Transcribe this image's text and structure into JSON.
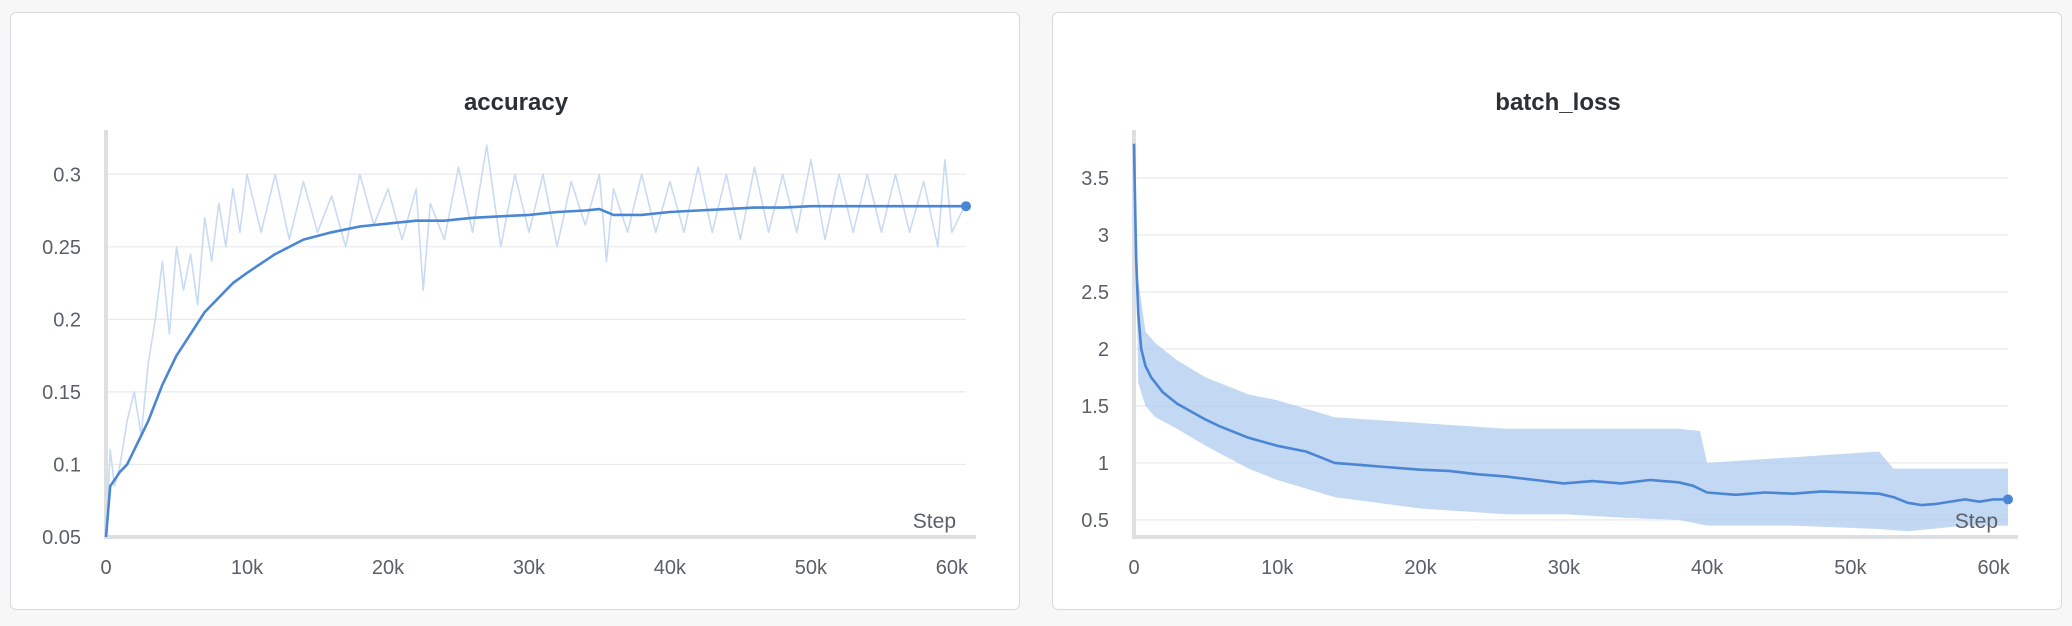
{
  "colors": {
    "line": "#4a86d4",
    "band": "#aecbef",
    "raw": "#c9dbf2"
  },
  "chart_data": [
    {
      "type": "line",
      "title": "accuracy",
      "xlabel": "Step",
      "xlim": [
        0,
        61000
      ],
      "ylim": [
        0.05,
        0.325
      ],
      "xticks": [
        0,
        10000,
        20000,
        30000,
        40000,
        50000,
        60000
      ],
      "xtick_labels": [
        "0",
        "10k",
        "20k",
        "30k",
        "40k",
        "50k",
        "60k"
      ],
      "yticks": [
        0.05,
        0.1,
        0.15,
        0.2,
        0.25,
        0.3
      ],
      "ytick_labels": [
        "0.05",
        "0.1",
        "0.15",
        "0.2",
        "0.25",
        "0.3"
      ],
      "grid": true,
      "series": [
        {
          "style": "smoothed",
          "x": [
            0,
            300,
            1000,
            1500,
            2000,
            3000,
            4000,
            5000,
            6000,
            7000,
            8000,
            9000,
            10000,
            12000,
            14000,
            16000,
            18000,
            20000,
            22000,
            24000,
            26000,
            28000,
            30000,
            32000,
            34000,
            35000,
            36000,
            38000,
            40000,
            42000,
            44000,
            46000,
            48000,
            50000,
            52000,
            54000,
            56000,
            58000,
            61000
          ],
          "y": [
            0.05,
            0.085,
            0.095,
            0.1,
            0.11,
            0.13,
            0.155,
            0.175,
            0.19,
            0.205,
            0.215,
            0.225,
            0.232,
            0.245,
            0.255,
            0.26,
            0.264,
            0.266,
            0.268,
            0.268,
            0.27,
            0.271,
            0.272,
            0.274,
            0.275,
            0.276,
            0.272,
            0.272,
            0.274,
            0.275,
            0.276,
            0.277,
            0.277,
            0.278,
            0.278,
            0.278,
            0.278,
            0.278,
            0.278
          ]
        },
        {
          "style": "raw",
          "x": [
            0,
            300,
            600,
            1000,
            1500,
            2000,
            2500,
            3000,
            3500,
            4000,
            4500,
            5000,
            5500,
            6000,
            6500,
            7000,
            7500,
            8000,
            8500,
            9000,
            9500,
            10000,
            11000,
            12000,
            13000,
            14000,
            15000,
            16000,
            17000,
            18000,
            19000,
            20000,
            21000,
            22000,
            22500,
            23000,
            24000,
            25000,
            26000,
            27000,
            28000,
            29000,
            30000,
            31000,
            32000,
            33000,
            34000,
            35000,
            35500,
            36000,
            37000,
            38000,
            39000,
            40000,
            41000,
            42000,
            43000,
            44000,
            45000,
            46000,
            47000,
            48000,
            49000,
            50000,
            51000,
            52000,
            53000,
            54000,
            55000,
            56000,
            57000,
            58000,
            59000,
            59500,
            60000,
            61000
          ],
          "y": [
            0.05,
            0.11,
            0.085,
            0.1,
            0.13,
            0.15,
            0.12,
            0.17,
            0.2,
            0.24,
            0.19,
            0.25,
            0.22,
            0.245,
            0.21,
            0.27,
            0.24,
            0.28,
            0.25,
            0.29,
            0.26,
            0.3,
            0.26,
            0.3,
            0.255,
            0.295,
            0.26,
            0.285,
            0.25,
            0.3,
            0.265,
            0.29,
            0.255,
            0.29,
            0.22,
            0.28,
            0.255,
            0.305,
            0.26,
            0.32,
            0.25,
            0.3,
            0.26,
            0.3,
            0.25,
            0.295,
            0.265,
            0.3,
            0.24,
            0.29,
            0.26,
            0.3,
            0.26,
            0.295,
            0.26,
            0.305,
            0.26,
            0.3,
            0.255,
            0.305,
            0.26,
            0.3,
            0.26,
            0.31,
            0.255,
            0.3,
            0.26,
            0.3,
            0.26,
            0.3,
            0.26,
            0.295,
            0.25,
            0.31,
            0.26,
            0.28
          ]
        }
      ]
    },
    {
      "type": "line",
      "title": "batch_loss",
      "xlabel": "Step",
      "xlim": [
        0,
        61000
      ],
      "ylim": [
        0.35,
        3.85
      ],
      "xticks": [
        0,
        10000,
        20000,
        30000,
        40000,
        50000,
        60000
      ],
      "xtick_labels": [
        "0",
        "10k",
        "20k",
        "30k",
        "40k",
        "50k",
        "60k"
      ],
      "yticks": [
        0.5,
        1,
        1.5,
        2,
        2.5,
        3,
        3.5
      ],
      "ytick_labels": [
        "0.5",
        "1",
        "1.5",
        "2",
        "2.5",
        "3",
        "3.5"
      ],
      "grid": true,
      "series": [
        {
          "style": "smoothed",
          "x": [
            0,
            150,
            300,
            500,
            800,
            1200,
            2000,
            3000,
            4000,
            5000,
            6000,
            8000,
            10000,
            12000,
            13000,
            14000,
            16000,
            18000,
            20000,
            22000,
            24000,
            26000,
            28000,
            30000,
            32000,
            34000,
            36000,
            38000,
            39000,
            40000,
            42000,
            44000,
            46000,
            48000,
            50000,
            52000,
            53000,
            54000,
            55000,
            56000,
            58000,
            59000,
            60000,
            61000
          ],
          "y": [
            3.8,
            2.8,
            2.3,
            2.0,
            1.85,
            1.75,
            1.62,
            1.52,
            1.45,
            1.38,
            1.32,
            1.22,
            1.15,
            1.1,
            1.05,
            1.0,
            0.98,
            0.96,
            0.94,
            0.93,
            0.9,
            0.88,
            0.85,
            0.82,
            0.84,
            0.82,
            0.85,
            0.83,
            0.8,
            0.74,
            0.72,
            0.74,
            0.73,
            0.75,
            0.74,
            0.73,
            0.7,
            0.65,
            0.63,
            0.64,
            0.68,
            0.66,
            0.68,
            0.68
          ]
        },
        {
          "style": "band-upper",
          "x": [
            0,
            300,
            800,
            1500,
            3000,
            5000,
            8000,
            10000,
            14000,
            20000,
            26000,
            30000,
            34000,
            38000,
            39500,
            40000,
            46000,
            52000,
            53000,
            54000,
            58000,
            61000
          ],
          "y": [
            3.8,
            2.6,
            2.15,
            2.05,
            1.9,
            1.75,
            1.6,
            1.55,
            1.4,
            1.35,
            1.3,
            1.3,
            1.3,
            1.3,
            1.28,
            1.0,
            1.05,
            1.1,
            0.95,
            0.95,
            0.95,
            0.95
          ]
        },
        {
          "style": "band-lower",
          "x": [
            0,
            300,
            800,
            1500,
            3000,
            5000,
            8000,
            10000,
            14000,
            20000,
            26000,
            30000,
            34000,
            38000,
            40000,
            46000,
            52000,
            54000,
            58000,
            61000
          ],
          "y": [
            3.8,
            1.7,
            1.5,
            1.4,
            1.3,
            1.15,
            0.95,
            0.85,
            0.7,
            0.6,
            0.55,
            0.55,
            0.52,
            0.5,
            0.45,
            0.45,
            0.42,
            0.4,
            0.45,
            0.45
          ]
        }
      ]
    }
  ]
}
